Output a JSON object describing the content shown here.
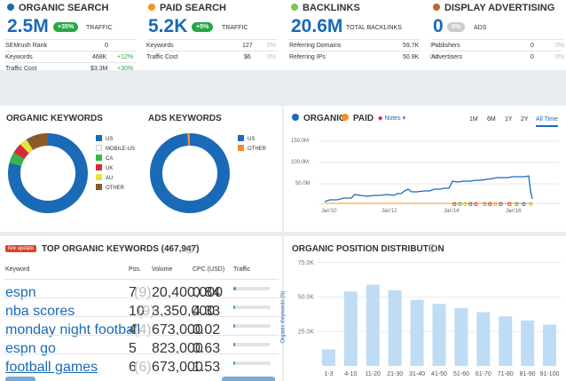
{
  "colors": {
    "organic": "#1a6ab8",
    "paid": "#f68f29",
    "backlinks": "#7cc34c",
    "display": "#c0652c",
    "green": "#27a744",
    "bar": "#bfdcf5"
  },
  "overview": {
    "organic": {
      "title": "ORGANIC SEARCH",
      "value": "2.5M",
      "badge": "+35%",
      "unit": "TRAFFIC",
      "rows": [
        {
          "label": "SEMrush Rank",
          "value": "0",
          "change": ""
        },
        {
          "label": "Keywords",
          "value": "468K",
          "change": "+12%"
        },
        {
          "label": "Traffic Cost",
          "value": "$3.3M",
          "change": "+30%"
        }
      ]
    },
    "paid": {
      "title": "PAID SEARCH",
      "value": "5.2K",
      "badge": "+5%",
      "unit": "TRAFFIC",
      "rows": [
        {
          "label": "Keywords",
          "value": "127",
          "change": "0%"
        },
        {
          "label": "Traffic Cost",
          "value": "$6",
          "change": "0%"
        }
      ]
    },
    "backlinks": {
      "title": "BACKLINKS",
      "value": "20.6M",
      "unit": "TOTAL BACKLINKS",
      "rows": [
        {
          "label": "Referring Domains",
          "value": "59.7K",
          "change": "0%"
        },
        {
          "label": "Referring IPs",
          "value": "50.9K",
          "change": "0%"
        }
      ]
    },
    "display": {
      "title": "DISPLAY ADVERTISING",
      "value": "0",
      "badge": "0%",
      "unit": "ADS",
      "rows": [
        {
          "label": "Publishers",
          "value": "0",
          "change": "0%"
        },
        {
          "label": "Advertisers",
          "value": "0",
          "change": "0%"
        }
      ]
    }
  },
  "organic_keywords": {
    "title": "ORGANIC KEYWORDS",
    "legend": [
      "US",
      "MOBILE-US",
      "CA",
      "UK",
      "AU",
      "OTHER"
    ],
    "legend_colors": [
      "#1a6ab8",
      "#ffffff",
      "#3cb34a",
      "#d9293a",
      "#e6e635",
      "#8a5a2b"
    ]
  },
  "ads_keywords": {
    "title": "ADS KEYWORDS",
    "legend": [
      "US",
      "OTHER"
    ],
    "legend_colors": [
      "#1a6ab8",
      "#f68f29"
    ]
  },
  "trend": {
    "organic_label": "ORGANIC",
    "paid_label": "PAID",
    "notes_label": "Notes",
    "periods": [
      "1M",
      "6M",
      "1Y",
      "2Y",
      "All Time"
    ],
    "active_period": "All Time",
    "y_ticks": [
      "150.0M",
      "100.0M",
      "50.0M"
    ],
    "x_ticks": [
      "Jan'10",
      "Jan'12",
      "Jan'14",
      "Jan'16"
    ]
  },
  "top_keywords": {
    "badge": "live update",
    "title": "TOP ORGANIC KEYWORDS (467,947)",
    "columns": [
      "Keyword",
      "Pos.",
      "Volume",
      "CPC (USD)",
      "Traffic"
    ],
    "rows": [
      {
        "keyword": "espn",
        "pos": "7",
        "prev": "(9)",
        "volume": "20,400,000",
        "cpc": "0.84"
      },
      {
        "keyword": "nba scores",
        "pos": "10",
        "prev": "(9)",
        "volume": "3,350,000",
        "cpc": "4.33"
      },
      {
        "keyword": "monday night football",
        "pos": "4",
        "prev": "(4)",
        "volume": "673,000",
        "cpc": "0.02"
      },
      {
        "keyword": "espn go",
        "pos": "5",
        "prev": "",
        "volume": "823,000",
        "cpc": "0.63"
      },
      {
        "keyword": "football games",
        "pos": "6",
        "prev": "(6)",
        "volume": "673,000",
        "cpc": "1.53"
      }
    ],
    "traffic_share": [
      0.06,
      0.03,
      0.02,
      0.02,
      0.02
    ]
  },
  "chart_data": {
    "type": "bar",
    "title": "ORGANIC POSITION DISTRIBUTION",
    "ylabel": "Organic Keywords (N)",
    "xlabel": "",
    "categories": [
      "1-3",
      "4-10",
      "11-20",
      "21-30",
      "31-40",
      "41-50",
      "51-60",
      "61-70",
      "71-80",
      "81-90",
      "91-100"
    ],
    "values": [
      12000,
      54000,
      59000,
      55000,
      48000,
      45000,
      42000,
      39000,
      36000,
      33000,
      30000
    ],
    "ylim": [
      0,
      80000
    ],
    "yticks": [
      "75.0K",
      "50.0K",
      "25.0K"
    ],
    "ytick_values": [
      75000,
      50000,
      25000
    ]
  }
}
